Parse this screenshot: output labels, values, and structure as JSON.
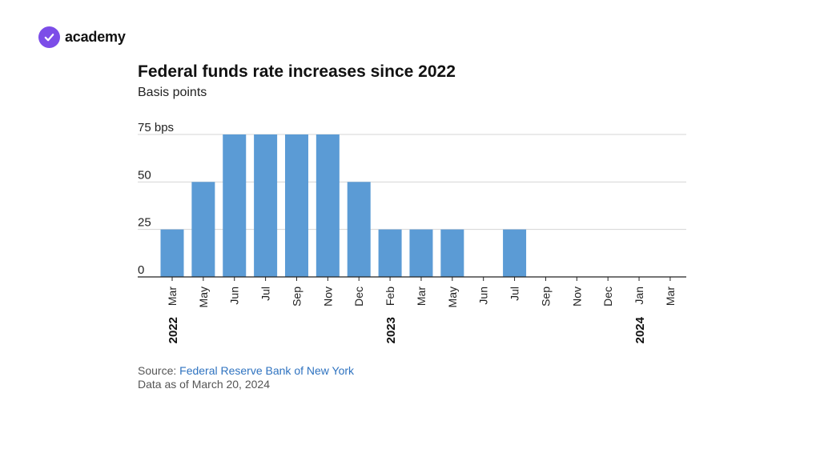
{
  "brand": {
    "name": "academy",
    "logo_icon": "checkmark-circle-icon",
    "color": "#7c4de8"
  },
  "chart_data": {
    "type": "bar",
    "title": "Federal funds rate increases since 2022",
    "subtitle": "Basis points",
    "categories": [
      "Mar",
      "May",
      "Jun",
      "Jul",
      "Sep",
      "Nov",
      "Dec",
      "Feb",
      "Mar",
      "May",
      "Jun",
      "Jul",
      "Sep",
      "Nov",
      "Dec",
      "Jan",
      "Mar"
    ],
    "values": [
      25,
      50,
      75,
      75,
      75,
      75,
      50,
      25,
      25,
      25,
      0,
      25,
      0,
      0,
      0,
      0,
      0
    ],
    "year_labels": [
      {
        "label": "2022",
        "category_index": 0
      },
      {
        "label": "2023",
        "category_index": 7
      },
      {
        "label": "2024",
        "category_index": 15
      }
    ],
    "y_ticks": [
      {
        "value": 0,
        "label": "0"
      },
      {
        "value": 25,
        "label": "25"
      },
      {
        "value": 50,
        "label": "50"
      },
      {
        "value": 75,
        "label": "75 bps"
      }
    ],
    "ylim": [
      0,
      75
    ],
    "grid": true,
    "bar_color": "#5b9bd5",
    "xlabel": "",
    "ylabel": ""
  },
  "footer": {
    "source_prefix": "Source: ",
    "source_link": "Federal Reserve Bank of New York",
    "as_of": "Data as of March 20, 2024"
  }
}
